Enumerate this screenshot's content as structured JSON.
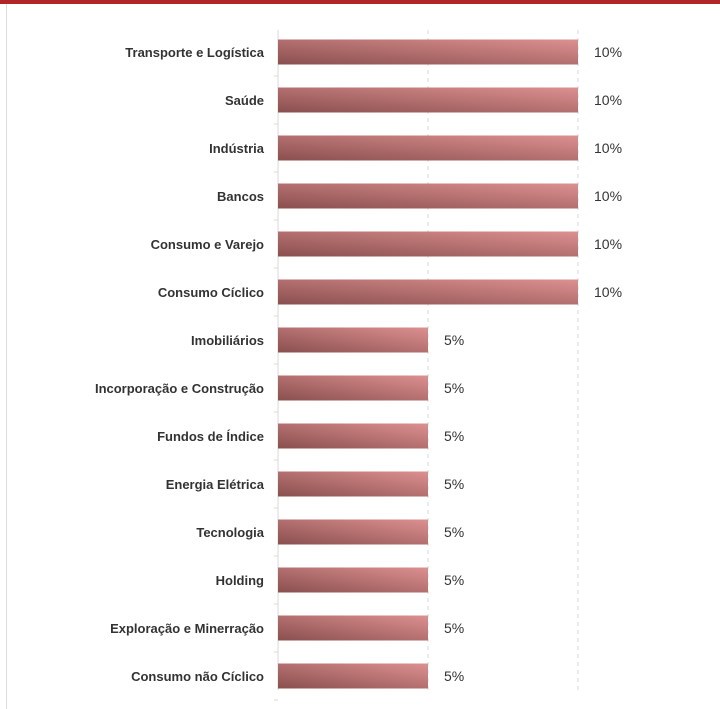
{
  "colors": {
    "header_band": "#b3242a",
    "bar_light": "#dd9090",
    "bar_dark": "#8a4f4f",
    "grid": "#d9d9d9",
    "text": "#333333"
  },
  "chart_data": {
    "type": "bar",
    "orientation": "horizontal",
    "title": "",
    "xlabel": "",
    "ylabel": "",
    "xlim": [
      0,
      10
    ],
    "grid": true,
    "categories": [
      "Transporte e Logística",
      "Saúde",
      "Indústria",
      "Bancos",
      "Consumo e Varejo",
      "Consumo Cíclico",
      "Imobiliários",
      "Incorporação e Construção",
      "Fundos de Índice",
      "Energia Elétrica",
      "Tecnologia",
      "Holding",
      "Exploração e Minerração ",
      "Consumo não Cíclico"
    ],
    "values": [
      10,
      10,
      10,
      10,
      10,
      10,
      5,
      5,
      5,
      5,
      5,
      5,
      5,
      5
    ],
    "value_labels": [
      "10%",
      "10%",
      "10%",
      "10%",
      "10%",
      "10%",
      "5%",
      "5%",
      "5%",
      "5%",
      "5%",
      "5%",
      "5%",
      "5%"
    ]
  }
}
